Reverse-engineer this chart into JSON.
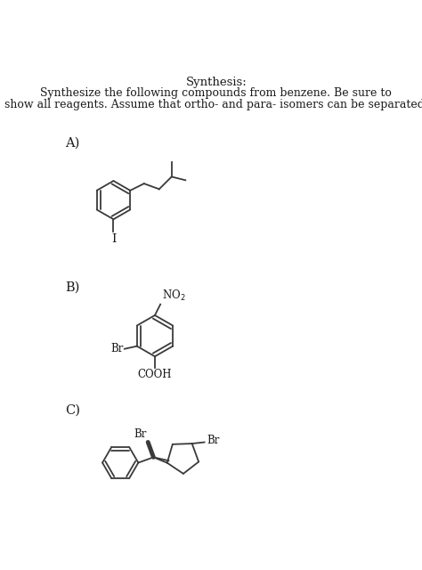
{
  "title_line1": "Synthesis:",
  "title_line2": "Synthesize the following compounds from benzene. Be sure to",
  "title_line3": "show all reagents. Assume that ortho- and para- isomers can be separated.",
  "label_A": "A)",
  "label_B": "B)",
  "label_C": "C)",
  "bg_color": "#ffffff",
  "line_color": "#3a3a3a",
  "text_color": "#1a1a1a",
  "font_size_title": 9.5,
  "font_size_label": 10.5,
  "font_size_substituent": 8.5
}
